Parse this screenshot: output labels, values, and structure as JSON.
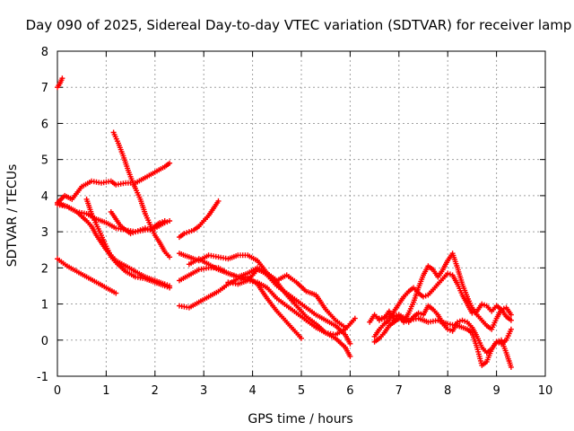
{
  "chart_data": {
    "type": "scatter",
    "title": "Day 090 of 2025, Sidereal Day-to-day VTEC variation (SDTVAR) for receiver lamp",
    "xlabel": "GPS time / hours",
    "ylabel": "SDTVAR / TECUs",
    "xlim": [
      0,
      10
    ],
    "ylim": [
      -1,
      8
    ],
    "xticks": [
      "0",
      "1",
      "2",
      "3",
      "4",
      "5",
      "6",
      "7",
      "8",
      "9",
      "10"
    ],
    "yticks": [
      "-1",
      "0",
      "1",
      "2",
      "3",
      "4",
      "5",
      "6",
      "7",
      "8"
    ],
    "grid": true,
    "marker": "plus",
    "color": "#ff0000",
    "series": [
      {
        "x": [
          0.0,
          0.05,
          0.1
        ],
        "y": [
          7.0,
          7.1,
          7.25
        ]
      },
      {
        "x": [
          0.0,
          0.15,
          0.3,
          0.5,
          0.7,
          0.9,
          1.1,
          1.2,
          1.4,
          1.6,
          1.8,
          2.0,
          2.2,
          2.3
        ],
        "y": [
          3.8,
          4.0,
          3.9,
          4.25,
          4.4,
          4.35,
          4.4,
          4.3,
          4.35,
          4.35,
          4.5,
          4.65,
          4.8,
          4.9
        ]
      },
      {
        "x": [
          0.0,
          0.2,
          0.4,
          0.6,
          0.8,
          1.0,
          1.2,
          1.4,
          1.6,
          1.8,
          2.0,
          2.2,
          2.3
        ],
        "y": [
          3.75,
          3.7,
          3.55,
          3.5,
          3.35,
          3.25,
          3.1,
          3.05,
          3.0,
          3.05,
          3.1,
          3.25,
          3.3
        ]
      },
      {
        "x": [
          0.0,
          0.2,
          0.4,
          0.6,
          0.7,
          0.8,
          0.9,
          1.0,
          1.1,
          1.2,
          1.4,
          1.6,
          1.8,
          2.0,
          2.2,
          2.3
        ],
        "y": [
          3.8,
          3.7,
          3.55,
          3.3,
          3.15,
          2.9,
          2.7,
          2.5,
          2.35,
          2.2,
          2.05,
          1.9,
          1.75,
          1.65,
          1.55,
          1.5
        ]
      },
      {
        "x": [
          0.6,
          0.7,
          0.8,
          0.9,
          1.0,
          1.1,
          1.2,
          1.4,
          1.6,
          1.8,
          2.0,
          2.2,
          2.3
        ],
        "y": [
          3.9,
          3.5,
          3.2,
          2.9,
          2.6,
          2.3,
          2.15,
          1.9,
          1.75,
          1.7,
          1.6,
          1.5,
          1.45
        ]
      },
      {
        "x": [
          0.0,
          0.2,
          0.4,
          0.6,
          0.8,
          1.0,
          1.2
        ],
        "y": [
          2.25,
          2.05,
          1.9,
          1.75,
          1.6,
          1.45,
          1.3
        ]
      },
      {
        "x": [
          1.15,
          1.25,
          1.35,
          1.45,
          1.55,
          1.6,
          1.7,
          1.8,
          1.9,
          2.0,
          2.1,
          2.2,
          2.3
        ],
        "y": [
          5.75,
          5.45,
          5.1,
          4.7,
          4.35,
          4.2,
          3.9,
          3.5,
          3.2,
          2.9,
          2.7,
          2.45,
          2.3
        ]
      },
      {
        "x": [
          1.1,
          1.2,
          1.3,
          1.4,
          1.5,
          1.6,
          1.7,
          1.8,
          1.9,
          2.0,
          2.1,
          2.2
        ],
        "y": [
          3.55,
          3.35,
          3.15,
          3.05,
          2.95,
          3.0,
          3.05,
          3.1,
          3.05,
          3.15,
          3.25,
          3.3
        ]
      },
      {
        "x": [
          2.5,
          2.6,
          2.7,
          2.8,
          2.9,
          3.0,
          3.1,
          3.2,
          3.3
        ],
        "y": [
          2.85,
          2.95,
          3.0,
          3.05,
          3.15,
          3.3,
          3.45,
          3.65,
          3.85
        ]
      },
      {
        "x": [
          2.5,
          2.7,
          2.9,
          3.1,
          3.3,
          3.5,
          3.7,
          3.9,
          4.1,
          4.3,
          4.5,
          4.7,
          4.9,
          5.1,
          5.3,
          5.5,
          5.7,
          5.9,
          6.0
        ],
        "y": [
          2.4,
          2.3,
          2.2,
          2.35,
          2.3,
          2.25,
          2.35,
          2.35,
          2.2,
          1.85,
          1.6,
          1.25,
          0.95,
          0.65,
          0.45,
          0.2,
          0.05,
          -0.2,
          -0.45
        ]
      },
      {
        "x": [
          2.5,
          2.7,
          2.9,
          3.1,
          3.3,
          3.5,
          3.7,
          3.9,
          4.1,
          4.3,
          4.5,
          4.7,
          4.9,
          5.1,
          5.3,
          5.5,
          5.7,
          5.9,
          6.0
        ],
        "y": [
          1.65,
          1.8,
          1.95,
          2.0,
          2.0,
          1.85,
          1.75,
          1.85,
          2.0,
          1.8,
          1.5,
          1.3,
          1.1,
          0.9,
          0.7,
          0.55,
          0.4,
          0.15,
          -0.1
        ]
      },
      {
        "x": [
          2.5,
          2.7,
          2.9,
          3.1,
          3.3,
          3.5,
          3.7,
          3.9,
          4.1,
          4.3,
          4.5,
          4.7,
          4.9,
          5.0
        ],
        "y": [
          0.95,
          0.9,
          1.05,
          1.2,
          1.35,
          1.55,
          1.7,
          1.75,
          1.55,
          1.15,
          0.8,
          0.5,
          0.2,
          0.05
        ]
      },
      {
        "x": [
          2.7,
          2.9,
          3.1,
          3.3,
          3.5,
          3.7,
          3.9,
          4.1,
          4.3,
          4.5,
          4.7,
          4.9,
          5.1,
          5.3,
          5.5,
          5.7,
          5.9,
          6.1
        ],
        "y": [
          2.1,
          2.25,
          2.1,
          1.95,
          1.85,
          1.75,
          1.65,
          1.6,
          1.45,
          1.15,
          0.95,
          0.75,
          0.55,
          0.35,
          0.2,
          0.15,
          0.3,
          0.6
        ]
      },
      {
        "x": [
          3.5,
          3.7,
          3.9,
          4.1,
          4.3,
          4.5,
          4.7,
          4.9,
          5.1,
          5.3,
          5.5,
          5.7,
          5.9
        ],
        "y": [
          1.6,
          1.55,
          1.65,
          1.95,
          1.85,
          1.65,
          1.8,
          1.6,
          1.35,
          1.25,
          0.85,
          0.55,
          0.35
        ]
      },
      {
        "x": [
          6.4,
          6.5,
          6.6,
          6.7,
          6.8,
          6.9,
          7.0,
          7.1,
          7.2,
          7.3,
          7.4,
          7.5,
          7.6,
          7.7,
          7.8,
          7.9,
          8.0,
          8.1,
          8.2,
          8.3,
          8.4,
          8.5,
          8.6,
          8.7,
          8.8,
          8.9,
          9.0,
          9.1,
          9.2,
          9.3
        ],
        "y": [
          0.5,
          0.7,
          0.55,
          0.6,
          0.8,
          0.55,
          0.7,
          0.5,
          0.75,
          1.05,
          1.45,
          1.8,
          2.05,
          1.95,
          1.75,
          1.95,
          2.2,
          2.4,
          2.0,
          1.55,
          1.2,
          0.9,
          0.7,
          0.55,
          0.4,
          0.3,
          0.6,
          0.85,
          0.9,
          0.7
        ]
      },
      {
        "x": [
          6.5,
          6.6,
          6.7,
          6.8,
          6.9,
          7.0,
          7.1,
          7.2,
          7.3,
          7.4,
          7.5,
          7.6,
          7.7,
          7.8,
          7.9,
          8.0,
          8.1,
          8.2,
          8.3,
          8.4,
          8.5,
          8.6,
          8.7,
          8.8,
          8.9,
          9.0,
          9.1,
          9.2,
          9.3
        ],
        "y": [
          0.1,
          0.3,
          0.45,
          0.55,
          0.8,
          1.0,
          1.2,
          1.35,
          1.45,
          1.3,
          1.2,
          1.25,
          1.4,
          1.55,
          1.7,
          1.85,
          1.8,
          1.55,
          1.25,
          1.0,
          0.75,
          0.8,
          1.0,
          0.95,
          0.8,
          0.95,
          0.85,
          0.65,
          0.55
        ]
      },
      {
        "x": [
          6.5,
          6.6,
          6.7,
          6.8,
          6.9,
          7.0,
          7.1,
          7.2,
          7.3,
          7.4,
          7.5,
          7.6,
          7.7,
          7.8,
          7.9,
          8.0,
          8.1,
          8.2,
          8.3,
          8.4,
          8.5,
          8.6,
          8.7,
          8.8,
          8.9,
          9.0,
          9.1,
          9.2,
          9.3
        ],
        "y": [
          -0.05,
          0.05,
          0.2,
          0.4,
          0.5,
          0.6,
          0.55,
          0.5,
          0.65,
          0.75,
          0.7,
          0.95,
          0.85,
          0.7,
          0.45,
          0.3,
          0.25,
          0.5,
          0.55,
          0.5,
          0.35,
          0.1,
          -0.2,
          -0.35,
          -0.25,
          -0.05,
          -0.1,
          0.0,
          0.3
        ]
      },
      {
        "x": [
          6.6,
          6.8,
          7.0,
          7.2,
          7.4,
          7.6,
          7.8,
          8.0,
          8.2,
          8.4,
          8.5,
          8.6,
          8.7,
          8.8,
          8.9,
          9.0,
          9.1,
          9.2,
          9.3
        ],
        "y": [
          0.6,
          0.65,
          0.7,
          0.55,
          0.6,
          0.5,
          0.55,
          0.45,
          0.4,
          0.3,
          0.2,
          -0.2,
          -0.7,
          -0.6,
          -0.25,
          -0.05,
          0.0,
          -0.35,
          -0.75
        ]
      }
    ]
  }
}
